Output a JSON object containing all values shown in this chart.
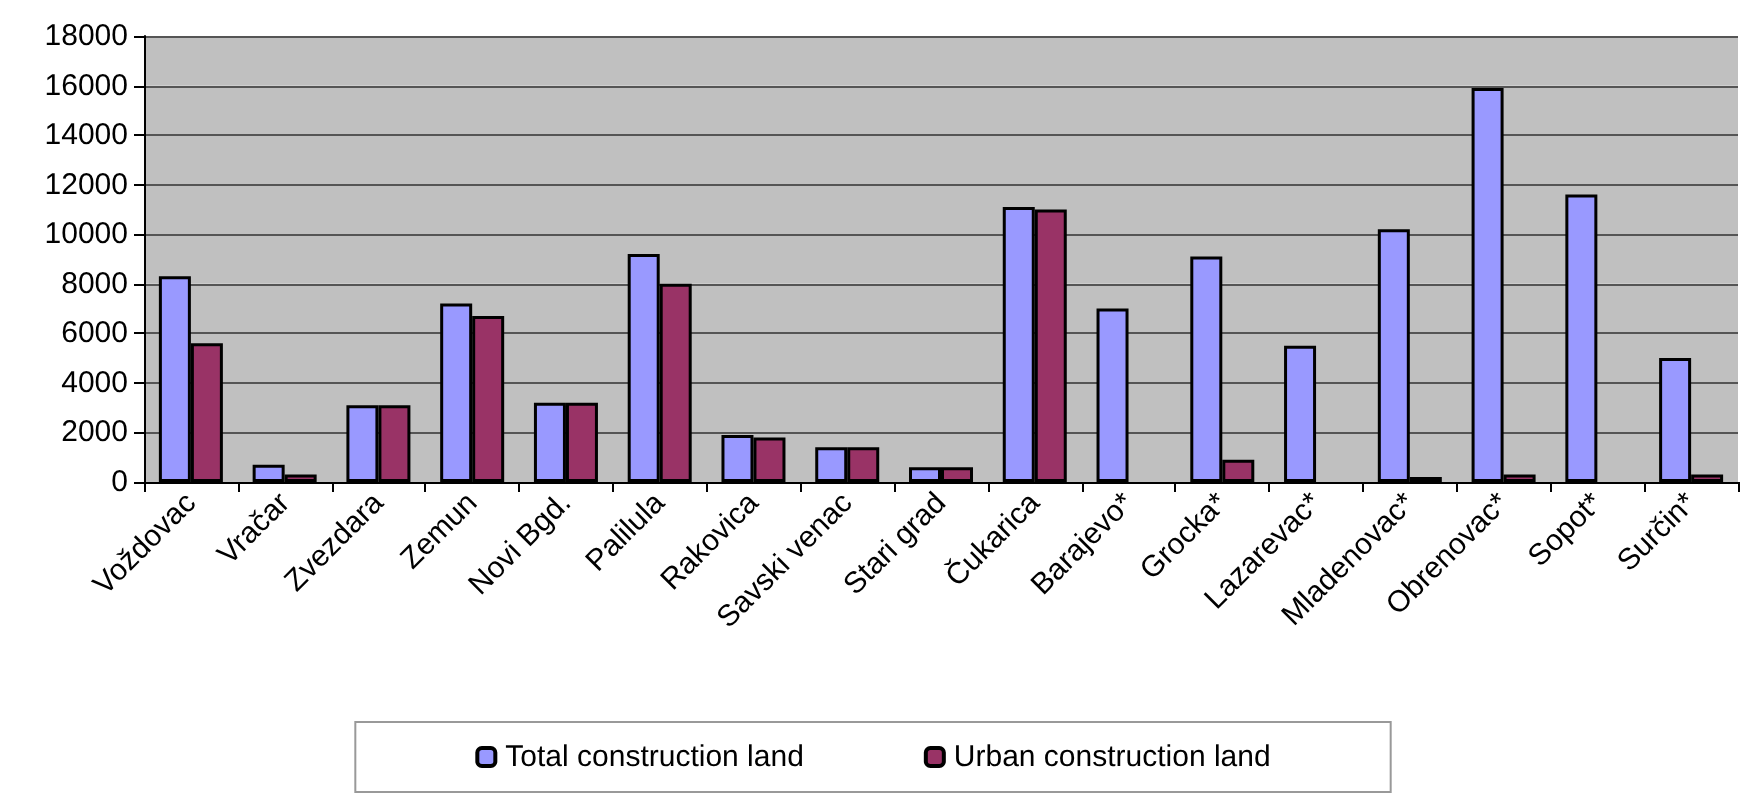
{
  "chart_data": {
    "type": "bar",
    "categories": [
      "Voždovac",
      "Vračar",
      "Zvezdara",
      "Zemun",
      "Novi Bgd.",
      "Palilula",
      "Rakovica",
      "Savski venac",
      "Stari grad",
      "Čukarica",
      "Barajevo*",
      "Grocka*",
      "Lazarevac*",
      "Mladenovac*",
      "Obrenovac*",
      "Sopot*",
      "Surčin*"
    ],
    "series": [
      {
        "name": "Total construction land",
        "color": "#9999ff",
        "values": [
          8300,
          700,
          3100,
          7200,
          3200,
          9200,
          1900,
          1400,
          600,
          11100,
          7000,
          9100,
          5500,
          10200,
          15900,
          11600,
          5000
        ]
      },
      {
        "name": "Urban construction land",
        "color": "#993366",
        "values": [
          5600,
          300,
          3100,
          6700,
          3200,
          8000,
          1800,
          1400,
          600,
          11000,
          0,
          900,
          0,
          200,
          300,
          0,
          300
        ]
      }
    ],
    "ylim": [
      0,
      18000
    ],
    "yticks": [
      0,
      2000,
      4000,
      6000,
      8000,
      10000,
      12000,
      14000,
      16000,
      18000
    ],
    "grid": "y",
    "legend": "bottom"
  }
}
